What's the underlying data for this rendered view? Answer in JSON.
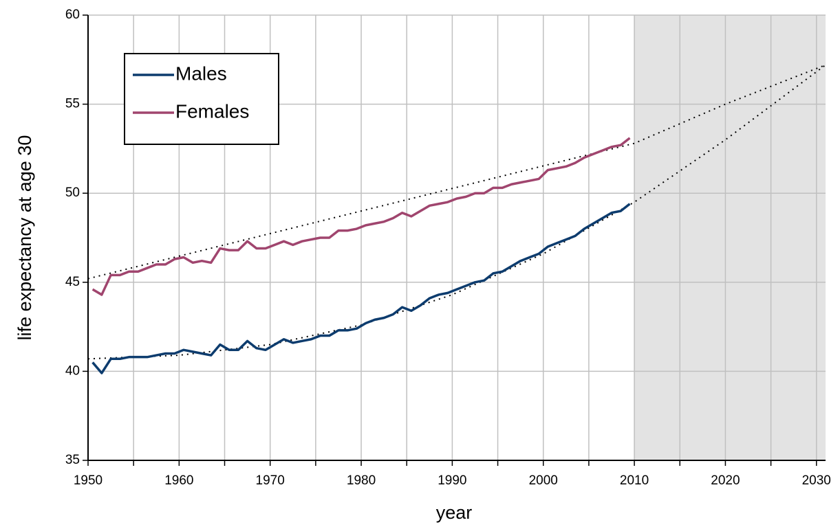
{
  "chart_data": {
    "type": "line",
    "xlabel": "year",
    "ylabel": "life expectancy at age 30",
    "xlim": [
      1950,
      2031
    ],
    "ylim": [
      35,
      60
    ],
    "xticks": [
      1950,
      1960,
      1970,
      1980,
      1990,
      2000,
      2010,
      2020,
      2030
    ],
    "xminorticks": [
      1955,
      1965,
      1975,
      1985,
      1995,
      2005,
      2015,
      2025
    ],
    "yticks": [
      35,
      40,
      45,
      50,
      55,
      60
    ],
    "grid": true,
    "shaded_xrange": [
      2010,
      2031
    ],
    "shade_color": "#e3e3e3",
    "legend": "top-left",
    "x": [
      1950.5,
      1951.5,
      1952.5,
      1953.5,
      1954.5,
      1955.5,
      1956.5,
      1957.5,
      1958.5,
      1959.5,
      1960.5,
      1961.5,
      1962.5,
      1963.5,
      1964.5,
      1965.5,
      1966.5,
      1967.5,
      1968.5,
      1969.5,
      1970.5,
      1971.5,
      1972.5,
      1973.5,
      1974.5,
      1975.5,
      1976.5,
      1977.5,
      1978.5,
      1979.5,
      1980.5,
      1981.5,
      1982.5,
      1983.5,
      1984.5,
      1985.5,
      1986.5,
      1987.5,
      1988.5,
      1989.5,
      1990.5,
      1991.5,
      1992.5,
      1993.5,
      1994.5,
      1995.5,
      1996.5,
      1997.5,
      1998.5,
      1999.5,
      2000.5,
      2001.5,
      2002.5,
      2003.5,
      2004.5,
      2005.5,
      2006.5,
      2007.5,
      2008.5,
      2009.5
    ],
    "series": [
      {
        "name": "Males",
        "color": "#0d3c6e",
        "values": [
          40.5,
          39.9,
          40.7,
          40.7,
          40.8,
          40.8,
          40.8,
          40.9,
          41.0,
          41.0,
          41.2,
          41.1,
          41.0,
          40.9,
          41.5,
          41.2,
          41.2,
          41.7,
          41.3,
          41.2,
          41.5,
          41.8,
          41.6,
          41.7,
          41.8,
          42.0,
          42.0,
          42.3,
          42.3,
          42.4,
          42.7,
          42.9,
          43.0,
          43.2,
          43.6,
          43.4,
          43.7,
          44.1,
          44.3,
          44.4,
          44.6,
          44.8,
          45.0,
          45.1,
          45.5,
          45.6,
          45.9,
          46.2,
          46.4,
          46.6,
          47.0,
          47.2,
          47.4,
          47.6,
          48.0,
          48.3,
          48.6,
          48.9,
          49.0,
          49.4
        ]
      },
      {
        "name": "Females",
        "color": "#a0456e",
        "values": [
          44.6,
          44.3,
          45.4,
          45.4,
          45.6,
          45.6,
          45.8,
          46.0,
          46.0,
          46.3,
          46.4,
          46.1,
          46.2,
          46.1,
          46.9,
          46.8,
          46.8,
          47.3,
          46.9,
          46.9,
          47.1,
          47.3,
          47.1,
          47.3,
          47.4,
          47.5,
          47.5,
          47.9,
          47.9,
          48.0,
          48.2,
          48.3,
          48.4,
          48.6,
          48.9,
          48.7,
          49.0,
          49.3,
          49.4,
          49.5,
          49.7,
          49.8,
          50.0,
          50.0,
          50.3,
          50.3,
          50.5,
          50.6,
          50.7,
          50.8,
          51.3,
          51.4,
          51.5,
          51.7,
          52.0,
          52.2,
          52.4,
          52.6,
          52.7,
          53.1
        ]
      }
    ],
    "trends": [
      {
        "color": "#000000",
        "x": [
          1950,
          1960,
          1970,
          1980,
          1990,
          2000,
          2010,
          2020,
          2031
        ],
        "values": [
          40.7,
          40.9,
          41.5,
          42.6,
          44.3,
          46.6,
          49.5,
          53.0,
          57.2
        ]
      },
      {
        "color": "#000000",
        "x": [
          1950,
          2010,
          2020,
          2031
        ],
        "values": [
          45.2,
          52.8,
          55.0,
          57.2
        ]
      }
    ]
  }
}
